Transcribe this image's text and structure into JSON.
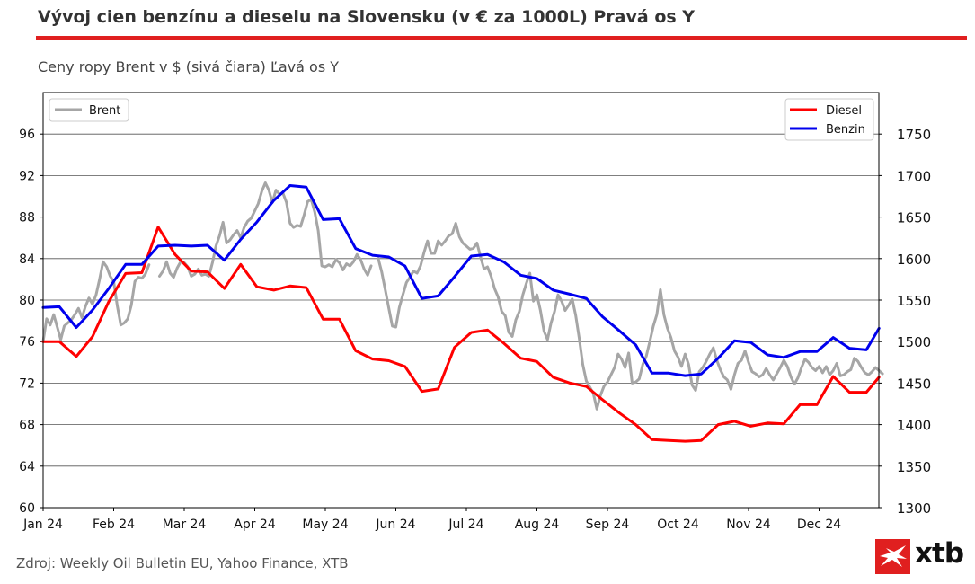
{
  "title": "Vývoj cien benzínu a dieselu na Slovensku (v € za 1000L) Pravá os Y",
  "subtitle": "Ceny ropy Brent v $ (sivá čiara) Ľavá os Y",
  "source": "Zdroj: Weekly Oil Bulletin EU, Yahoo Finance, XTB",
  "logo_text": "xtb",
  "colors": {
    "accent": "#e01f1f",
    "brent": "#a6a6a6",
    "diesel": "#ff0000",
    "benzin": "#0000ee"
  },
  "chart_data": {
    "type": "line",
    "x_labels": [
      "Jan 24",
      "Feb 24",
      "Mar 24",
      "Apr 24",
      "May 24",
      "Jun 24",
      "Jul 24",
      "Aug 24",
      "Sep 24",
      "Oct 24",
      "Nov 24",
      "Dec 24"
    ],
    "y_left": {
      "ticks": [
        60,
        64,
        68,
        72,
        76,
        80,
        84,
        88,
        92,
        96
      ],
      "range": [
        60,
        100
      ]
    },
    "y_right": {
      "ticks": [
        1300,
        1350,
        1400,
        1450,
        1500,
        1550,
        1600,
        1650,
        1700,
        1750
      ],
      "range": [
        1300,
        1800
      ]
    },
    "grid": true,
    "legend_left": {
      "placement": "top-left",
      "entries": [
        "Brent"
      ]
    },
    "legend_right": {
      "placement": "top-right",
      "entries": [
        "Diesel",
        "Benzin"
      ]
    },
    "series": [
      {
        "name": "Brent",
        "axis": "left",
        "color": "#a6a6a6",
        "x": [
          0.0,
          0.05,
          0.1,
          0.15,
          0.2,
          0.25,
          0.3,
          0.35,
          0.4,
          0.45,
          0.5,
          0.55,
          0.6,
          0.65,
          0.7,
          0.75,
          0.8,
          0.85,
          0.9,
          0.95,
          1.0,
          1.05,
          1.1,
          1.15,
          1.2,
          1.25,
          1.3,
          1.35,
          1.4,
          1.45,
          1.5,
          1.55,
          1.6,
          1.65,
          1.7,
          1.75,
          1.8,
          1.85,
          1.9,
          1.95,
          2.0,
          2.05,
          2.1,
          2.15,
          2.2,
          2.25,
          2.3,
          2.35,
          2.4,
          2.45,
          2.5,
          2.55,
          2.6,
          2.65,
          2.7,
          2.75,
          2.8,
          2.85,
          2.9,
          2.95,
          3.0,
          3.05,
          3.1,
          3.15,
          3.2,
          3.25,
          3.3,
          3.35,
          3.4,
          3.45,
          3.5,
          3.55,
          3.6,
          3.65,
          3.7,
          3.75,
          3.8,
          3.85,
          3.9,
          3.95,
          4.0,
          4.05,
          4.1,
          4.15,
          4.2,
          4.25,
          4.3,
          4.35,
          4.4,
          4.45,
          4.5,
          4.55,
          4.6,
          4.65,
          4.7,
          4.75,
          4.8,
          4.85,
          4.9,
          4.95,
          5.0,
          5.05,
          5.1,
          5.15,
          5.2,
          5.25,
          5.3,
          5.35,
          5.4,
          5.45,
          5.5,
          5.55,
          5.6,
          5.65,
          5.7,
          5.75,
          5.8,
          5.85,
          5.9,
          5.95,
          6.0,
          6.05,
          6.1,
          6.15,
          6.2,
          6.25,
          6.3,
          6.35,
          6.4,
          6.45,
          6.5,
          6.55,
          6.6,
          6.65,
          6.7,
          6.75,
          6.8,
          6.85,
          6.9,
          6.95,
          7.0,
          7.05,
          7.1,
          7.15,
          7.2,
          7.25,
          7.3,
          7.35,
          7.4,
          7.45,
          7.5,
          7.55,
          7.6,
          7.65,
          7.7,
          7.75,
          7.8,
          7.85,
          7.9,
          7.95,
          8.0,
          8.05,
          8.1,
          8.15,
          8.2,
          8.25,
          8.3,
          8.35,
          8.4,
          8.45,
          8.5,
          8.55,
          8.6,
          8.65,
          8.7,
          8.75,
          8.8,
          8.85,
          8.9,
          8.95,
          9.0,
          9.05,
          9.1,
          9.15,
          9.2,
          9.25,
          9.3,
          9.35,
          9.4,
          9.45,
          9.5,
          9.55,
          9.6,
          9.65,
          9.7,
          9.75,
          9.8,
          9.85,
          9.9,
          9.95,
          10.0,
          10.05,
          10.1,
          10.15,
          10.2,
          10.25,
          10.3,
          10.35,
          10.4,
          10.45,
          10.5,
          10.55,
          10.6,
          10.65,
          10.7,
          10.75,
          10.8,
          10.85,
          10.9,
          10.95,
          11.0,
          11.05,
          11.1,
          11.15,
          11.2,
          11.25,
          11.3,
          11.35,
          11.4,
          11.45,
          11.5,
          11.55,
          11.6,
          11.65,
          11.7,
          11.75,
          11.8,
          11.85,
          11.9
        ],
        "values": [
          76.0,
          78.2,
          77.6,
          78.6,
          77.4,
          76.2,
          77.5,
          77.8,
          78.1,
          78.6,
          79.2,
          78.3,
          79.4,
          80.2,
          79.6,
          80.5,
          82.0,
          83.7,
          83.2,
          82.3,
          81.8,
          79.5,
          77.6,
          77.8,
          78.2,
          79.5,
          81.8,
          82.2,
          82.1,
          82.5,
          83.4,
          null,
          null,
          82.3,
          82.8,
          83.7,
          82.6,
          82.2,
          83.1,
          83.7,
          83.6,
          83.2,
          82.3,
          82.5,
          83.0,
          82.4,
          82.5,
          82.3,
          83.6,
          85.2,
          86.2,
          87.5,
          85.5,
          85.8,
          86.3,
          86.7,
          86.0,
          87.0,
          87.6,
          87.9,
          88.6,
          89.3,
          90.5,
          91.3,
          90.6,
          89.4,
          90.6,
          90.2,
          90.3,
          89.4,
          87.4,
          87.0,
          87.2,
          87.1,
          88.2,
          89.5,
          89.7,
          88.5,
          86.7,
          83.3,
          83.2,
          83.4,
          83.2,
          83.9,
          83.6,
          82.9,
          83.5,
          83.3,
          83.7,
          84.4,
          83.9,
          83.0,
          82.4,
          83.3,
          null,
          84.0,
          82.7,
          81.0,
          79.2,
          77.5,
          77.4,
          79.3,
          80.5,
          81.7,
          82.2,
          82.8,
          82.6,
          83.3,
          84.6,
          85.7,
          84.5,
          84.5,
          85.7,
          85.3,
          85.7,
          86.2,
          86.4,
          87.4,
          86.1,
          85.5,
          85.2,
          84.9,
          85.0,
          85.5,
          84.2,
          83.0,
          83.2,
          82.3,
          81.1,
          80.3,
          78.9,
          78.5,
          76.9,
          76.5,
          78.1,
          78.9,
          80.5,
          81.6,
          82.6,
          79.9,
          80.5,
          79.0,
          77.0,
          76.2,
          77.8,
          78.9,
          80.5,
          79.9,
          79.0,
          79.5,
          80.1,
          78.5,
          76.3,
          73.8,
          72.2,
          71.6,
          71.0,
          69.5,
          70.8,
          71.7,
          72.1,
          72.8,
          73.5,
          74.8,
          74.3,
          73.5,
          74.9,
          72.0,
          72.1,
          72.4,
          73.8,
          74.6,
          76.0,
          77.5,
          78.6,
          81.0,
          78.6,
          77.3,
          76.4,
          75.1,
          74.5,
          73.6,
          74.8,
          73.8,
          71.8,
          71.3,
          73.1,
          73.5,
          74.1,
          74.8,
          75.4,
          74.2,
          73.3,
          72.6,
          72.3,
          71.4,
          72.8,
          73.9,
          74.2,
          75.1,
          74.0,
          73.1,
          72.9,
          72.6,
          72.8,
          73.4,
          72.8,
          72.3,
          72.9,
          73.5,
          74.2,
          73.6,
          72.6,
          71.9,
          72.5,
          73.5,
          74.3,
          74.0,
          73.5,
          73.2,
          73.6,
          73.0,
          73.6,
          72.8,
          73.2,
          73.9,
          72.7,
          72.8,
          73.1,
          73.3,
          74.4,
          74.1,
          73.5,
          73.0,
          72.8,
          73.1,
          73.5,
          73.2,
          72.9
        ]
      },
      {
        "name": "Diesel",
        "axis": "right",
        "color": "#ff0000",
        "x": [
          0.0,
          0.23,
          0.47,
          0.7,
          0.93,
          1.17,
          1.4,
          1.63,
          1.87,
          2.1,
          2.33,
          2.57,
          2.8,
          3.03,
          3.27,
          3.5,
          3.73,
          3.97,
          4.2,
          4.43,
          4.67,
          4.9,
          5.13,
          5.37,
          5.6,
          5.83,
          6.07,
          6.3,
          6.53,
          6.77,
          7.0,
          7.23,
          7.47,
          7.7,
          7.93,
          8.17,
          8.4,
          8.63,
          8.87,
          9.1,
          9.33,
          9.57,
          9.8,
          10.03,
          10.27,
          10.5,
          10.73,
          10.97,
          11.2,
          11.43,
          11.67,
          11.85
        ],
        "values": [
          1500,
          1500,
          1482,
          1506,
          1548,
          1582,
          1583,
          1638,
          1605,
          1585,
          1584,
          1564,
          1593,
          1566,
          1562,
          1567,
          1565,
          1527,
          1527,
          1489,
          1479,
          1477,
          1470,
          1440,
          1443,
          1493,
          1511,
          1514,
          1498,
          1480,
          1476,
          1457,
          1450,
          1446,
          1430,
          1414,
          1400,
          1382,
          1381,
          1380,
          1381,
          1400,
          1404,
          1398,
          1402,
          1401,
          1424,
          1424,
          1458,
          1439,
          1439,
          1457
        ]
      },
      {
        "name": "Benzin",
        "axis": "right",
        "color": "#0000ee",
        "x": [
          0.0,
          0.23,
          0.47,
          0.7,
          0.93,
          1.17,
          1.4,
          1.63,
          1.87,
          2.1,
          2.33,
          2.57,
          2.8,
          3.03,
          3.27,
          3.5,
          3.73,
          3.97,
          4.2,
          4.43,
          4.67,
          4.9,
          5.13,
          5.37,
          5.6,
          5.83,
          6.07,
          6.3,
          6.53,
          6.77,
          7.0,
          7.23,
          7.47,
          7.7,
          7.93,
          8.17,
          8.4,
          8.63,
          8.87,
          9.1,
          9.33,
          9.57,
          9.8,
          10.03,
          10.27,
          10.5,
          10.73,
          10.97,
          11.2,
          11.43,
          11.67,
          11.85
        ],
        "values": [
          1541,
          1542,
          1517,
          1538,
          1564,
          1593,
          1593,
          1615,
          1616,
          1615,
          1616,
          1598,
          1623,
          1644,
          1670,
          1688,
          1686,
          1647,
          1648,
          1612,
          1604,
          1602,
          1591,
          1552,
          1555,
          1578,
          1603,
          1605,
          1596,
          1580,
          1576,
          1562,
          1557,
          1552,
          1530,
          1513,
          1496,
          1462,
          1462,
          1459,
          1461,
          1480,
          1501,
          1499,
          1484,
          1481,
          1488,
          1488,
          1505,
          1492,
          1490,
          1516
        ]
      }
    ]
  }
}
